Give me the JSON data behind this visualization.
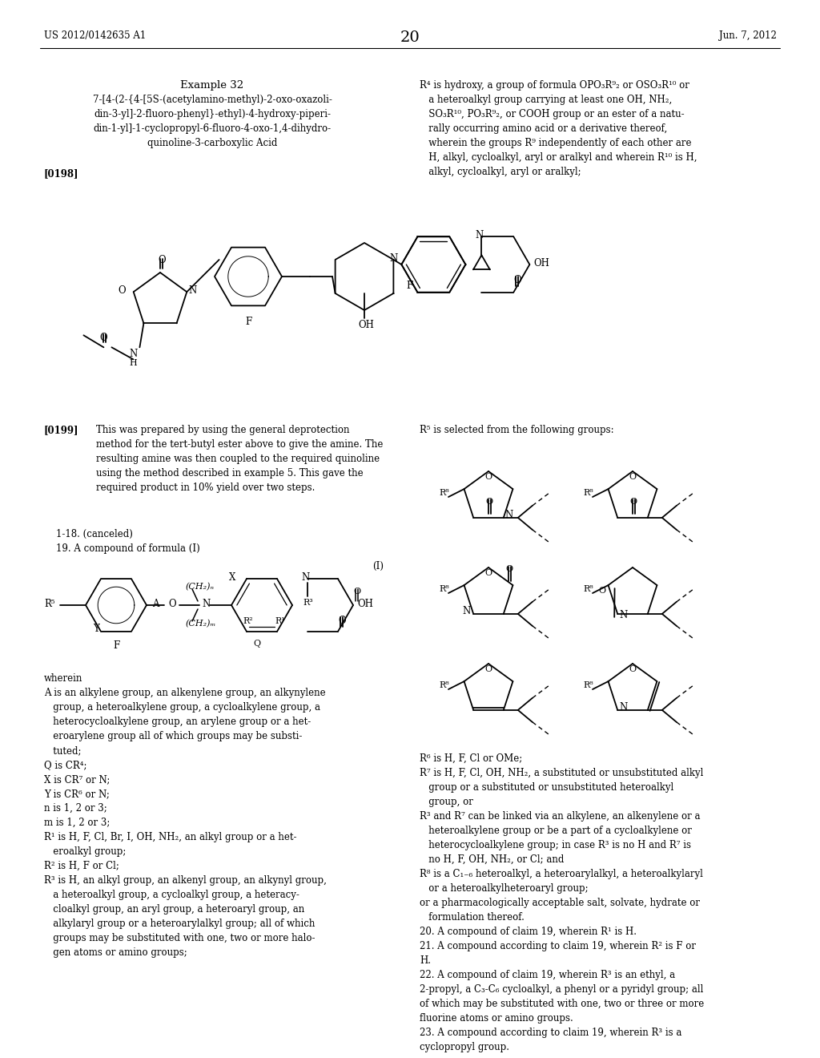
{
  "bg": "#ffffff",
  "header_left": "US 2012/0142635 A1",
  "header_right": "Jun. 7, 2012",
  "page_num": "20"
}
